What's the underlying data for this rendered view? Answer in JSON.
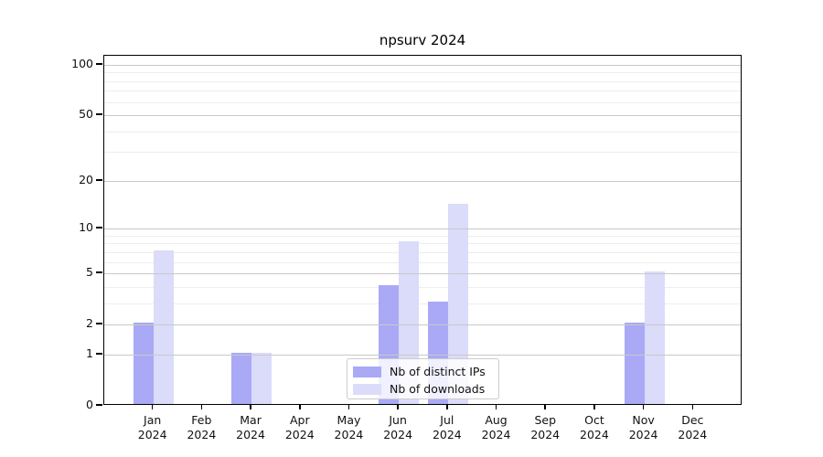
{
  "chart_data": {
    "type": "bar",
    "title": "npsurv 2024",
    "categories": [
      "Jan",
      "Feb",
      "Mar",
      "Apr",
      "May",
      "Jun",
      "Jul",
      "Aug",
      "Sep",
      "Oct",
      "Nov",
      "Dec"
    ],
    "year_label": "2024",
    "series": [
      {
        "name": "Nb of distinct IPs",
        "color": "#a9a9f6",
        "values": [
          2,
          0,
          1,
          0,
          0,
          4,
          3,
          0,
          0,
          0,
          2,
          0
        ]
      },
      {
        "name": "Nb of downloads",
        "color": "#dbdbfa",
        "values": [
          7,
          0,
          1,
          0,
          0,
          8,
          14,
          0,
          0,
          0,
          5,
          0
        ]
      }
    ],
    "yscale": "log1p",
    "ylim": [
      0,
      113
    ],
    "yticks": [
      0,
      1,
      2,
      5,
      10,
      20,
      50,
      100
    ],
    "minor_gridlines": [
      3,
      4,
      6,
      7,
      8,
      9,
      30,
      40,
      60,
      70,
      80,
      90
    ],
    "grid": true,
    "legend_position": "lower center",
    "colors": {
      "major_grid": "#c9c9c9",
      "minor_grid": "#ededed",
      "axis": "#000000",
      "text": "#111111",
      "background": "#ffffff"
    }
  }
}
